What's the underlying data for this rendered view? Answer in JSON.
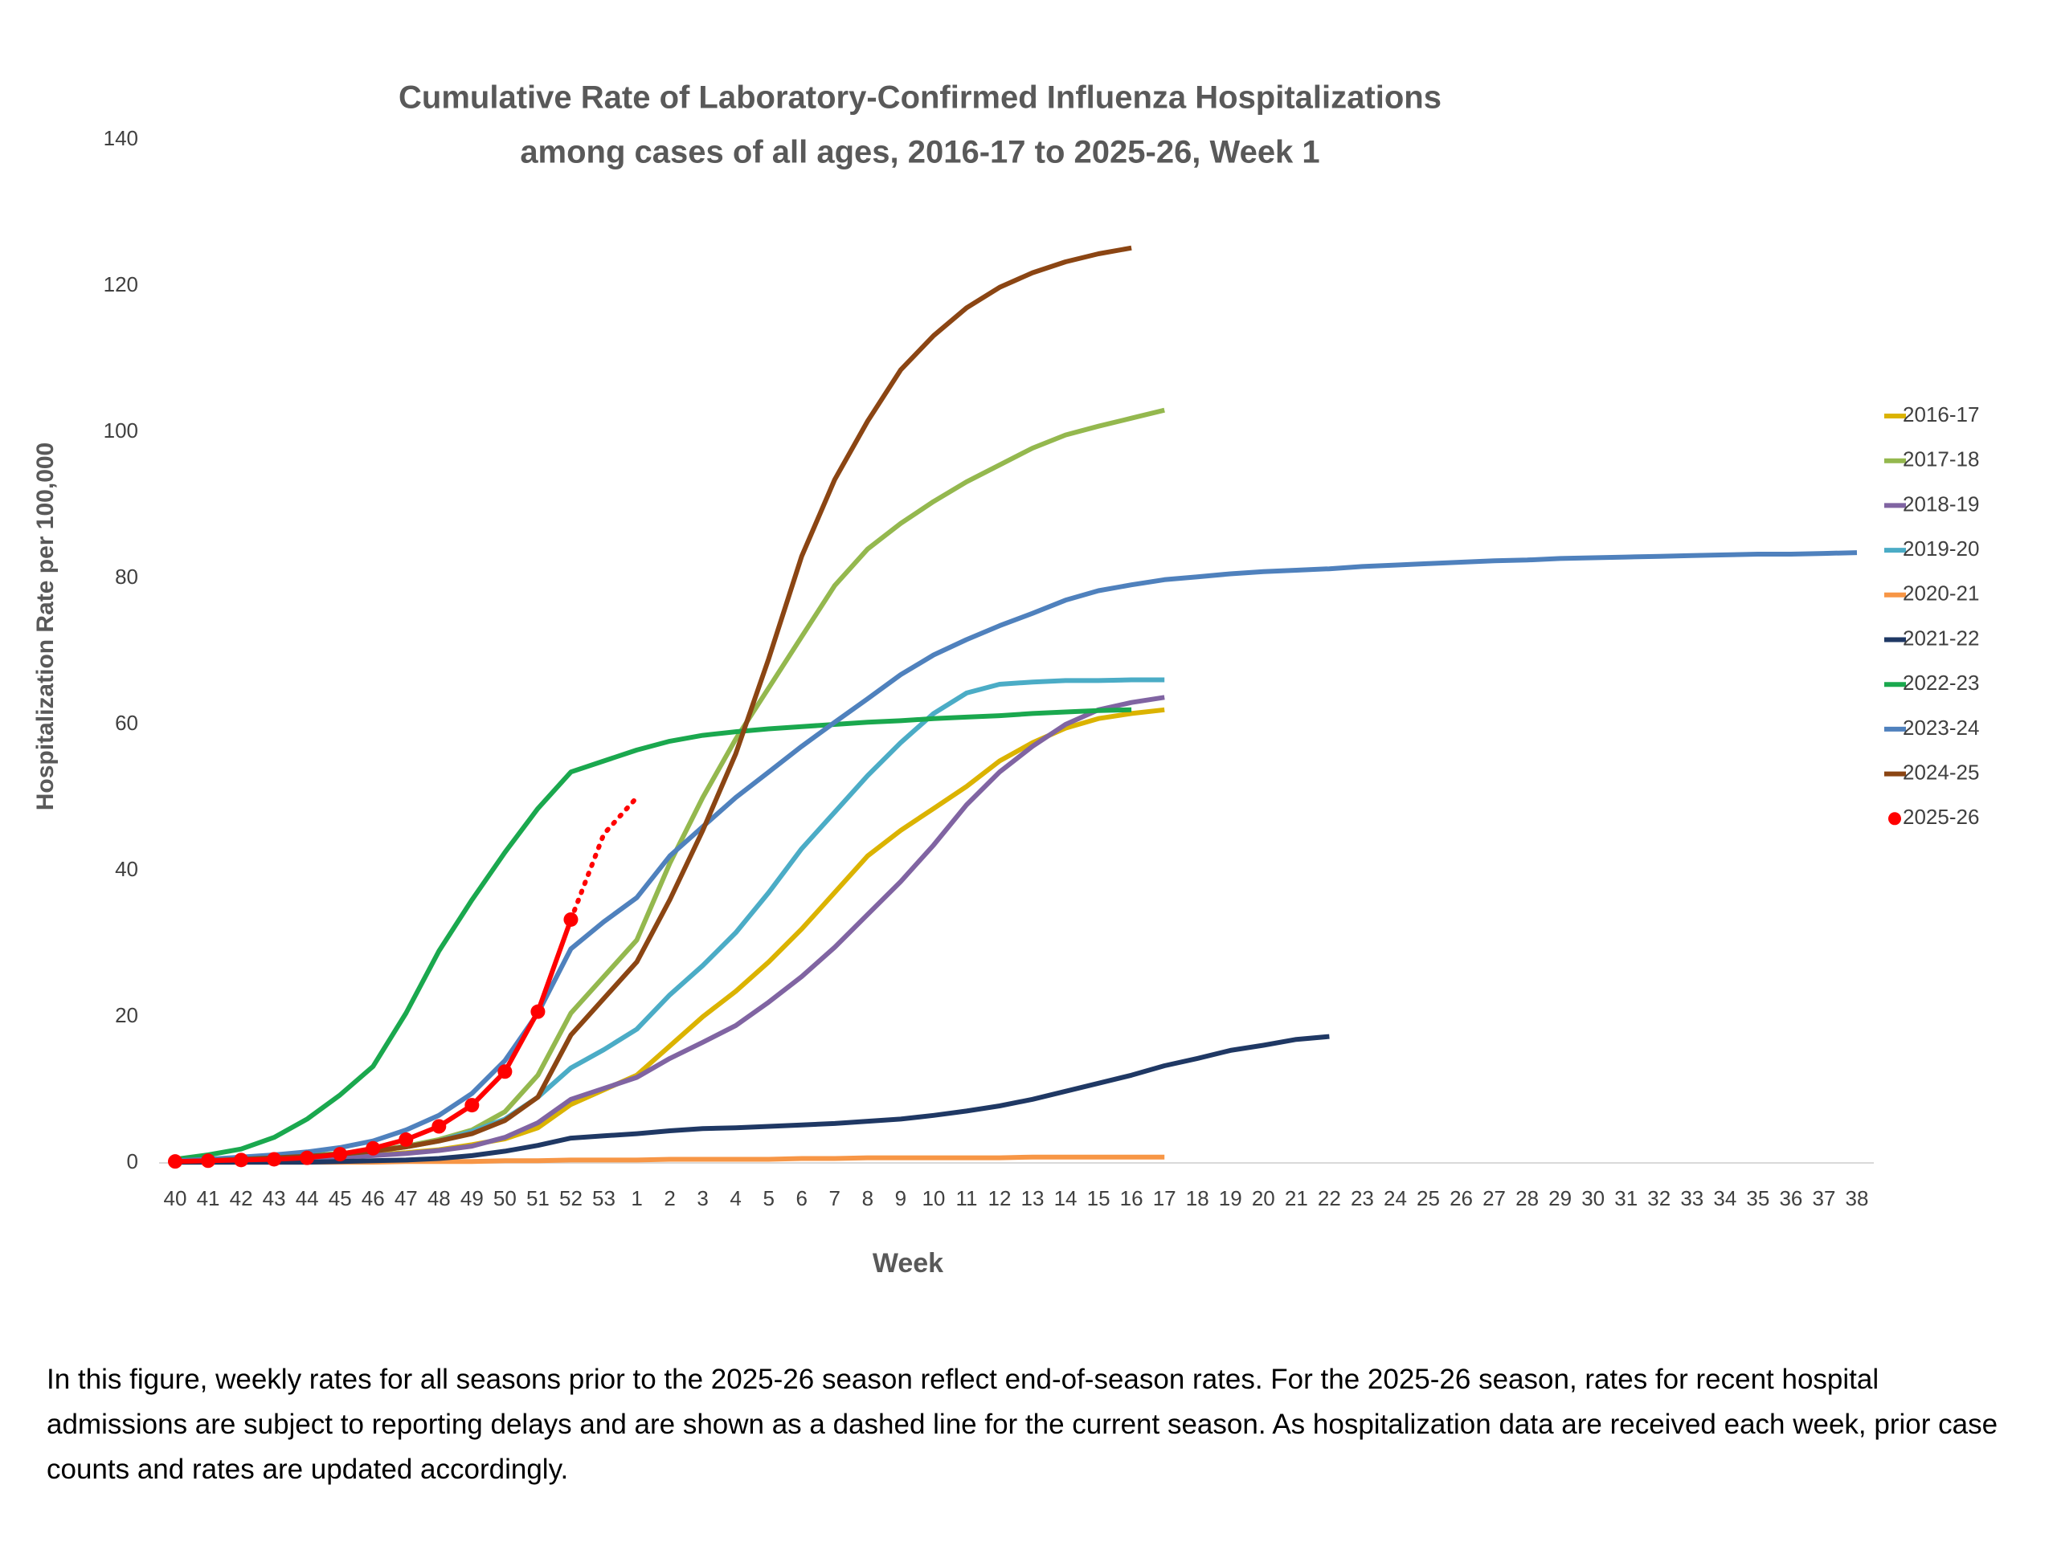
{
  "chart_data": {
    "type": "line",
    "title": [
      "Cumulative Rate of Laboratory-Confirmed Influenza Hospitalizations",
      "among cases of all ages, 2016-17 to 2025-26, Week 1"
    ],
    "x_label": "Week",
    "y_label": "Hospitalization Rate per 100,000",
    "note": "In this figure, weekly rates for all seasons prior to the 2025-26 season reflect end-of-season rates. For the 2025-26 season, rates for recent hospital admissions are subject to reporting delays and are shown as a dashed line for the current season. As hospitalization data are received each week, prior case counts and rates are updated accordingly.",
    "categories": [
      "40",
      "41",
      "42",
      "43",
      "44",
      "45",
      "46",
      "47",
      "48",
      "49",
      "50",
      "51",
      "52",
      "53",
      "1",
      "2",
      "3",
      "4",
      "5",
      "6",
      "7",
      "8",
      "9",
      "10",
      "11",
      "12",
      "13",
      "14",
      "15",
      "16",
      "17",
      "18",
      "19",
      "20",
      "21",
      "22",
      "23",
      "24",
      "25",
      "26",
      "27",
      "28",
      "29",
      "30",
      "31",
      "32",
      "33",
      "34",
      "35",
      "36",
      "37",
      "38"
    ],
    "ylim": [
      0,
      140
    ],
    "yticks": [
      0,
      20,
      40,
      60,
      80,
      100,
      120,
      140
    ],
    "grid": false,
    "legend": "right",
    "series": [
      {
        "name": "2016-17",
        "color": "#dbb300",
        "values": [
          0.2,
          0.3,
          0.4,
          0.5,
          0.7,
          0.9,
          1.1,
          1.4,
          1.8,
          2.5,
          3.3,
          4.8,
          8,
          10,
          12,
          16,
          20,
          23.5,
          27.5,
          32,
          37,
          42,
          45.5,
          48.5,
          51.5,
          55,
          57.5,
          59.5,
          60.8,
          61.5,
          62,
          null,
          null,
          null,
          null,
          null,
          null,
          null,
          null,
          null,
          null,
          null,
          null,
          null,
          null,
          null,
          null,
          null,
          null,
          null,
          null,
          null
        ]
      },
      {
        "name": "2017-18",
        "color": "#94b84e",
        "values": [
          0.3,
          0.4,
          0.6,
          0.8,
          1.0,
          1.3,
          1.7,
          2.3,
          3.2,
          4.5,
          7,
          12,
          20.5,
          25.5,
          30.5,
          41,
          50,
          58,
          65,
          72,
          79,
          84,
          87.5,
          90.5,
          93.2,
          95.5,
          97.8,
          99.6,
          100.8,
          101.9,
          103,
          null,
          null,
          null,
          null,
          null,
          null,
          null,
          null,
          null,
          null,
          null,
          null,
          null,
          null,
          null,
          null,
          null,
          null,
          null,
          null,
          null
        ]
      },
      {
        "name": "2018-19",
        "color": "#8064a2",
        "values": [
          0.2,
          0.3,
          0.4,
          0.5,
          0.6,
          0.8,
          1.0,
          1.3,
          1.7,
          2.3,
          3.5,
          5.5,
          8.7,
          10.2,
          11.7,
          14.3,
          16.5,
          18.8,
          22,
          25.5,
          29.5,
          34,
          38.5,
          43.5,
          49,
          53.5,
          57,
          60,
          62,
          63,
          63.7,
          null,
          null,
          null,
          null,
          null,
          null,
          null,
          null,
          null,
          null,
          null,
          null,
          null,
          null,
          null,
          null,
          null,
          null,
          null,
          null,
          null
        ]
      },
      {
        "name": "2019-20",
        "color": "#4bacc6",
        "values": [
          0.2,
          0.3,
          0.5,
          0.7,
          0.9,
          1.2,
          1.6,
          2.2,
          3,
          4.3,
          6,
          9,
          13,
          15.5,
          18.3,
          23,
          27,
          31.5,
          37,
          43,
          48,
          53,
          57.5,
          61.5,
          64.3,
          65.5,
          65.8,
          66,
          66,
          66.1,
          66.1,
          null,
          null,
          null,
          null,
          null,
          null,
          null,
          null,
          null,
          null,
          null,
          null,
          null,
          null,
          null,
          null,
          null,
          null,
          null,
          null,
          null
        ]
      },
      {
        "name": "2020-21",
        "color": "#f79646",
        "values": [
          0.1,
          0.1,
          0.1,
          0.1,
          0.1,
          0.1,
          0.1,
          0.2,
          0.2,
          0.2,
          0.3,
          0.3,
          0.4,
          0.4,
          0.4,
          0.5,
          0.5,
          0.5,
          0.5,
          0.6,
          0.6,
          0.7,
          0.7,
          0.7,
          0.7,
          0.7,
          0.8,
          0.8,
          0.8,
          0.8,
          0.8,
          null,
          null,
          null,
          null,
          null,
          null,
          null,
          null,
          null,
          null,
          null,
          null,
          null,
          null,
          null,
          null,
          null,
          null,
          null,
          null,
          null
        ]
      },
      {
        "name": "2021-22",
        "color": "#1f3864",
        "values": [
          0.1,
          0.1,
          0.1,
          0.1,
          0.1,
          0.2,
          0.3,
          0.4,
          0.6,
          1,
          1.6,
          2.4,
          3.4,
          3.7,
          4,
          4.4,
          4.7,
          4.8,
          5,
          5.2,
          5.4,
          5.7,
          6,
          6.5,
          7.1,
          7.8,
          8.7,
          9.8,
          10.9,
          12,
          13.3,
          14.3,
          15.4,
          16.1,
          16.9,
          17.3,
          null,
          null,
          null,
          null,
          null,
          null,
          null,
          null,
          null,
          null,
          null,
          null,
          null,
          null,
          null,
          null
        ]
      },
      {
        "name": "2022-23",
        "color": "#1aa84e",
        "values": [
          0.5,
          1.1,
          1.9,
          3.5,
          6,
          9.3,
          13.2,
          20.5,
          29,
          36,
          42.5,
          48.5,
          53.5,
          55,
          56.5,
          57.7,
          58.5,
          59,
          59.4,
          59.7,
          60,
          60.3,
          60.5,
          60.8,
          61,
          61.2,
          61.5,
          61.7,
          61.9,
          62,
          null,
          null,
          null,
          null,
          null,
          null,
          null,
          null,
          null,
          null,
          null,
          null,
          null,
          null,
          null,
          null,
          null,
          null,
          null,
          null,
          null,
          null
        ]
      },
      {
        "name": "2023-24",
        "color": "#4f81bd",
        "values": [
          0.3,
          0.5,
          0.8,
          1.1,
          1.5,
          2.1,
          3,
          4.5,
          6.5,
          9.5,
          14,
          20.5,
          29.3,
          33,
          36.3,
          42,
          46,
          50,
          53.5,
          57,
          60.3,
          63.5,
          66.8,
          69.5,
          71.6,
          73.5,
          75.2,
          77,
          78.3,
          79.1,
          79.8,
          80.2,
          80.6,
          80.9,
          81.1,
          81.3,
          81.6,
          81.8,
          82,
          82.2,
          82.4,
          82.5,
          82.7,
          82.8,
          82.9,
          83,
          83.1,
          83.2,
          83.3,
          83.3,
          83.4,
          83.5
        ]
      },
      {
        "name": "2024-25",
        "color": "#8b4513",
        "values": [
          0.2,
          0.3,
          0.5,
          0.7,
          0.9,
          1.2,
          1.6,
          2.2,
          3,
          4,
          5.8,
          9,
          17.5,
          22.5,
          27.5,
          36,
          45.5,
          56,
          69,
          83,
          93.5,
          101.5,
          108.5,
          113.2,
          117,
          119.8,
          121.8,
          123.3,
          124.4,
          125.2,
          null,
          null,
          null,
          null,
          null,
          null,
          null,
          null,
          null,
          null,
          null,
          null,
          null,
          null,
          null,
          null,
          null,
          null,
          null,
          null,
          null,
          null
        ]
      },
      {
        "name": "2025-26",
        "color": "#ff0000",
        "markers": true,
        "dashed_from": 12,
        "values": [
          0.2,
          0.3,
          0.4,
          0.5,
          0.7,
          1.2,
          2,
          3.2,
          5,
          7.9,
          12.5,
          20.7,
          33.3,
          45,
          50,
          null,
          null,
          null,
          null,
          null,
          null,
          null,
          null,
          null,
          null,
          null,
          null,
          null,
          null,
          null,
          null,
          null,
          null,
          null,
          null,
          null,
          null,
          null,
          null,
          null,
          null,
          null,
          null,
          null,
          null,
          null,
          null,
          null,
          null,
          null,
          null,
          null
        ]
      }
    ]
  }
}
